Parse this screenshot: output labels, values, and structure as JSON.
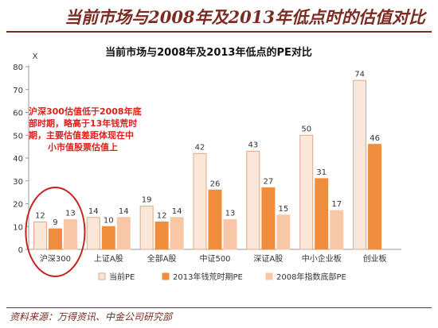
{
  "banner": {
    "title": "当前市场与2008年及2013年低点时的估值对比"
  },
  "footer": {
    "source": "资料来源：万得资讯、中金公司研究部"
  },
  "chart_data": {
    "type": "bar",
    "title": "当前市场与2008年及2013年低点的PE对比",
    "ylabel": "X",
    "ylim": [
      0,
      80
    ],
    "yticks": [
      0,
      10,
      20,
      30,
      40,
      50,
      60,
      70,
      80
    ],
    "grid": false,
    "legend_position": "bottom",
    "categories": [
      "沪深300",
      "上证A股",
      "全部A股",
      "中证500",
      "深证A股",
      "中小企业板",
      "创业板"
    ],
    "series": [
      {
        "name": "当前PE",
        "color": "#fbe6da",
        "stroke": "#e0a886",
        "values": [
          12,
          14,
          19,
          42,
          43,
          50,
          74
        ]
      },
      {
        "name": "2013年钱荒时期PE",
        "color": "#f08d3c",
        "stroke": "#f08d3c",
        "values": [
          9,
          10,
          12,
          26,
          27,
          31,
          46
        ]
      },
      {
        "name": "2008年指数底部PE",
        "color": "#f8c7a8",
        "stroke": "#f8c7a8",
        "values": [
          13,
          14,
          14,
          13,
          15,
          17,
          null
        ]
      }
    ],
    "annotation": {
      "lines": [
        "沪深300估值低于2008年底",
        "部时期，略高于13年钱荒时",
        "期，主要估值差距体现在中",
        "小市值股票估值上"
      ],
      "color": "#e0201b",
      "highlight_category": "沪深300"
    }
  }
}
